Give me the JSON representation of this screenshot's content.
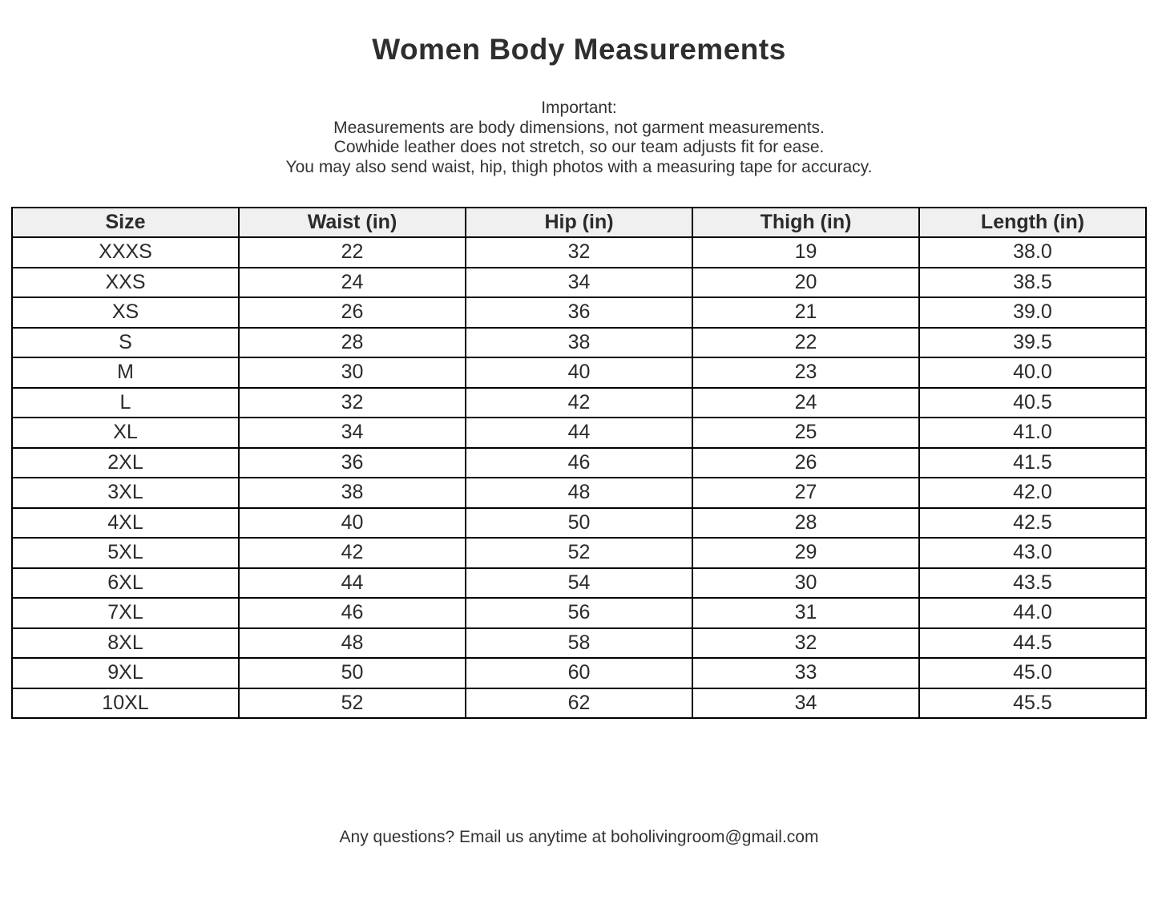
{
  "page": {
    "title": "Women Body Measurements",
    "note_lines": [
      "Important:",
      "Measurements are body dimensions, not garment measurements.",
      "Cowhide leather does not stretch, so our team adjusts fit for ease.",
      "You may also send waist, hip, thigh photos with a measuring tape for accuracy."
    ],
    "footer": "Any questions? Email us anytime at boholivingroom@gmail.com"
  },
  "table": {
    "headers": [
      "Size",
      "Waist (in)",
      "Hip (in)",
      "Thigh (in)",
      "Length (in)"
    ],
    "rows": [
      [
        "XXXS",
        "22",
        "32",
        "19",
        "38.0"
      ],
      [
        "XXS",
        "24",
        "34",
        "20",
        "38.5"
      ],
      [
        "XS",
        "26",
        "36",
        "21",
        "39.0"
      ],
      [
        "S",
        "28",
        "38",
        "22",
        "39.5"
      ],
      [
        "M",
        "30",
        "40",
        "23",
        "40.0"
      ],
      [
        "L",
        "32",
        "42",
        "24",
        "40.5"
      ],
      [
        "XL",
        "34",
        "44",
        "25",
        "41.0"
      ],
      [
        "2XL",
        "36",
        "46",
        "26",
        "41.5"
      ],
      [
        "3XL",
        "38",
        "48",
        "27",
        "42.0"
      ],
      [
        "4XL",
        "40",
        "50",
        "28",
        "42.5"
      ],
      [
        "5XL",
        "42",
        "52",
        "29",
        "43.0"
      ],
      [
        "6XL",
        "44",
        "54",
        "30",
        "43.5"
      ],
      [
        "7XL",
        "46",
        "56",
        "31",
        "44.0"
      ],
      [
        "8XL",
        "48",
        "58",
        "32",
        "44.5"
      ],
      [
        "9XL",
        "50",
        "60",
        "33",
        "45.0"
      ],
      [
        "10XL",
        "52",
        "62",
        "34",
        "45.5"
      ]
    ],
    "colors": {
      "header_bg": "#f0f0f0",
      "border": "#000000",
      "text": "#2b2b2b"
    }
  }
}
